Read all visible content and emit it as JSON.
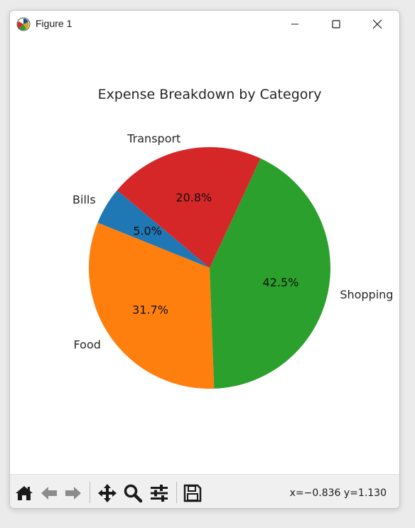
{
  "window": {
    "title": "Figure 1"
  },
  "toolbar": {
    "coords": "x=−0.836 y=1.130",
    "tools": [
      "home-icon",
      "back-arrow-icon",
      "forward-arrow-icon",
      "pan-icon",
      "zoom-icon",
      "configure-subplots-icon",
      "save-icon"
    ]
  },
  "chart_data": {
    "type": "pie",
    "title": "Expense Breakdown by Category",
    "categories": [
      "Bills",
      "Food",
      "Shopping",
      "Transport"
    ],
    "values": [
      5.0,
      31.7,
      42.5,
      20.8
    ],
    "labels": [
      "5.0%",
      "31.7%",
      "42.5%",
      "20.8%"
    ],
    "colors": [
      "#1f77b4",
      "#ff7f0e",
      "#2ca02c",
      "#d62728"
    ],
    "start_angle": 140,
    "counterclock": true
  }
}
